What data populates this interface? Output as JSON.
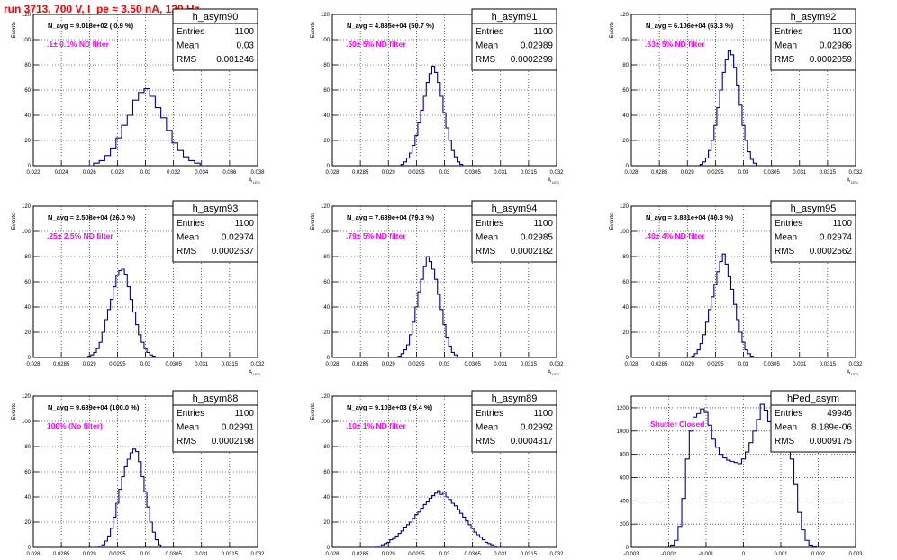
{
  "page_title": "run 3713,   700 V, I_pe ≈ 3.50 nA, 120 Hz",
  "colors": {
    "title": "#ff0000",
    "annotation": "#ff00ff",
    "histogram": "#000099",
    "grid": "#000000"
  },
  "stats_labels": {
    "entries": "Entries",
    "mean": "Mean",
    "rms": "RMS"
  },
  "chart_data": [
    {
      "type": "histogram",
      "title": "h_asym90",
      "ylabel": "Events",
      "xlabel": "A",
      "xlabel_sub": "LED",
      "xlim": [
        0.022,
        0.038
      ],
      "ylim": [
        0,
        120
      ],
      "xticks": [
        0.022,
        0.024,
        0.026,
        0.028,
        0.03,
        0.032,
        0.034,
        0.036,
        0.038
      ],
      "yticks": [
        0,
        20,
        40,
        60,
        80,
        100,
        120
      ],
      "navg": "N_avg = 9.018e+02 ( 0.9 %)",
      "filter_label": ".1± 0.1% ND filter",
      "stats": {
        "entries": "1100",
        "mean": "0.03",
        "rms": "0.001246"
      },
      "series": [
        {
          "x": [
            0.0261,
            0.0265,
            0.0269,
            0.0273,
            0.0277,
            0.0281,
            0.0285,
            0.0289,
            0.0293,
            0.0297,
            0.0301,
            0.0305,
            0.0309,
            0.0313,
            0.0317,
            0.0321,
            0.0325,
            0.0329,
            0.0333,
            0.0337,
            0.0341
          ],
          "values": [
            0,
            2,
            4,
            8,
            14,
            22,
            32,
            40,
            52,
            58,
            61,
            55,
            46,
            38,
            28,
            18,
            12,
            7,
            4,
            2,
            0
          ]
        }
      ]
    },
    {
      "type": "histogram",
      "title": "h_asym91",
      "ylabel": "Events",
      "xlabel": "A",
      "xlabel_sub": "LED",
      "xlim": [
        0.028,
        0.032
      ],
      "ylim": [
        0,
        120
      ],
      "xticks": [
        0.028,
        0.0285,
        0.029,
        0.0295,
        0.03,
        0.0305,
        0.031,
        0.0315,
        0.032
      ],
      "yticks": [
        0,
        20,
        40,
        60,
        80,
        100,
        120
      ],
      "navg": "N_avg = 4.885e+04 (50.7 %)",
      "filter_label": ".50± 5% ND filter",
      "stats": {
        "entries": "1100",
        "mean": "0.02989",
        "rms": "0.0002299"
      },
      "series": [
        {
          "x": [
            0.02925,
            0.0293,
            0.02935,
            0.0294,
            0.02945,
            0.0295,
            0.02955,
            0.0296,
            0.02965,
            0.0297,
            0.02975,
            0.0298,
            0.02985,
            0.0299,
            0.02995,
            0.03,
            0.03005,
            0.0301,
            0.03015,
            0.0302,
            0.03025,
            0.0303,
            0.03035
          ],
          "values": [
            1,
            3,
            6,
            10,
            16,
            24,
            34,
            44,
            55,
            66,
            73,
            79,
            74,
            66,
            55,
            42,
            30,
            20,
            12,
            7,
            3,
            1,
            0
          ]
        }
      ]
    },
    {
      "type": "histogram",
      "title": "h_asym92",
      "ylabel": "Events",
      "xlabel": "A",
      "xlabel_sub": "LED",
      "xlim": [
        0.028,
        0.032
      ],
      "ylim": [
        0,
        120
      ],
      "xticks": [
        0.028,
        0.0285,
        0.029,
        0.0295,
        0.03,
        0.0305,
        0.031,
        0.0315,
        0.032
      ],
      "yticks": [
        0,
        20,
        40,
        60,
        80,
        100,
        120
      ],
      "navg": "N_avg = 6.106e+04 (63.3 %)",
      "filter_label": ".63± 5% ND filter",
      "stats": {
        "entries": "1100",
        "mean": "0.02986",
        "rms": "0.0002059"
      },
      "series": [
        {
          "x": [
            0.02925,
            0.0293,
            0.02935,
            0.0294,
            0.02945,
            0.0295,
            0.02955,
            0.0296,
            0.02965,
            0.0297,
            0.02975,
            0.0298,
            0.02985,
            0.0299,
            0.02995,
            0.03,
            0.03005,
            0.0301,
            0.03015,
            0.0302,
            0.03025
          ],
          "values": [
            1,
            3,
            6,
            12,
            20,
            32,
            46,
            60,
            74,
            84,
            91,
            88,
            78,
            64,
            48,
            32,
            20,
            11,
            5,
            2,
            0
          ]
        }
      ]
    },
    {
      "type": "histogram",
      "title": "h_asym93",
      "ylabel": "Events",
      "xlabel": "A",
      "xlabel_sub": "LED",
      "xlim": [
        0.028,
        0.032
      ],
      "ylim": [
        0,
        120
      ],
      "xticks": [
        0.028,
        0.0285,
        0.029,
        0.0295,
        0.03,
        0.0305,
        0.031,
        0.0315,
        0.032
      ],
      "yticks": [
        0,
        20,
        40,
        60,
        80,
        100,
        120
      ],
      "navg": "N_avg = 2.508e+04 (26.0 %)",
      "filter_label": ".25± 2.5% ND filter",
      "stats": {
        "entries": "1100",
        "mean": "0.02974",
        "rms": "0.0002637"
      },
      "series": [
        {
          "x": [
            0.029,
            0.02905,
            0.0291,
            0.02915,
            0.0292,
            0.02925,
            0.0293,
            0.02935,
            0.0294,
            0.02945,
            0.0295,
            0.02955,
            0.0296,
            0.02965,
            0.0297,
            0.02975,
            0.0298,
            0.02985,
            0.0299,
            0.02995,
            0.03,
            0.03005,
            0.0301,
            0.03015,
            0.0302
          ],
          "values": [
            1,
            2,
            4,
            7,
            12,
            20,
            30,
            38,
            46,
            56,
            65,
            69,
            70,
            66,
            56,
            46,
            36,
            26,
            18,
            12,
            7,
            4,
            2,
            1,
            0
          ]
        }
      ]
    },
    {
      "type": "histogram",
      "title": "h_asym94",
      "ylabel": "Events",
      "xlabel": "A",
      "xlabel_sub": "LED",
      "xlim": [
        0.028,
        0.032
      ],
      "ylim": [
        0,
        120
      ],
      "xticks": [
        0.028,
        0.0285,
        0.029,
        0.0295,
        0.03,
        0.0305,
        0.031,
        0.0315,
        0.032
      ],
      "yticks": [
        0,
        20,
        40,
        60,
        80,
        100,
        120
      ],
      "navg": "N_avg = 7.639e+04 (79.3 %)",
      "filter_label": ".79± 5% ND filter",
      "stats": {
        "entries": "1100",
        "mean": "0.02985",
        "rms": "0.0002182"
      },
      "series": [
        {
          "x": [
            0.0292,
            0.02925,
            0.0293,
            0.02935,
            0.0294,
            0.02945,
            0.0295,
            0.02955,
            0.0296,
            0.02965,
            0.0297,
            0.02975,
            0.0298,
            0.02985,
            0.0299,
            0.02995,
            0.03,
            0.03005,
            0.0301,
            0.03015,
            0.0302,
            0.03025
          ],
          "values": [
            1,
            3,
            6,
            10,
            18,
            28,
            40,
            52,
            62,
            72,
            80,
            76,
            70,
            62,
            50,
            38,
            26,
            16,
            9,
            4,
            2,
            0
          ]
        }
      ]
    },
    {
      "type": "histogram",
      "title": "h_asym95",
      "ylabel": "Events",
      "xlabel": "A",
      "xlabel_sub": "LED",
      "xlim": [
        0.028,
        0.032
      ],
      "ylim": [
        0,
        120
      ],
      "xticks": [
        0.028,
        0.0285,
        0.029,
        0.0295,
        0.03,
        0.0305,
        0.031,
        0.0315,
        0.032
      ],
      "yticks": [
        0,
        20,
        40,
        60,
        80,
        100,
        120
      ],
      "navg": "N_avg = 3.881e+04 (40.3 %)",
      "filter_label": ".40± 4% ND filter",
      "stats": {
        "entries": "1100",
        "mean": "0.02974",
        "rms": "0.0002562"
      },
      "series": [
        {
          "x": [
            0.0291,
            0.02915,
            0.0292,
            0.02925,
            0.0293,
            0.02935,
            0.0294,
            0.02945,
            0.0295,
            0.02955,
            0.0296,
            0.02965,
            0.0297,
            0.02975,
            0.0298,
            0.02985,
            0.0299,
            0.02995,
            0.03,
            0.03005,
            0.0301,
            0.03015,
            0.0302
          ],
          "values": [
            1,
            3,
            6,
            11,
            18,
            28,
            38,
            48,
            58,
            68,
            76,
            82,
            74,
            64,
            54,
            42,
            30,
            20,
            12,
            6,
            3,
            1,
            0
          ]
        }
      ]
    },
    {
      "type": "histogram",
      "title": "h_asym88",
      "ylabel": "Events",
      "xlabel": "A",
      "xlabel_sub": "LED",
      "xlim": [
        0.028,
        0.032
      ],
      "ylim": [
        0,
        120
      ],
      "xticks": [
        0.028,
        0.0285,
        0.029,
        0.0295,
        0.03,
        0.0305,
        0.031,
        0.0315,
        0.032
      ],
      "yticks": [
        0,
        20,
        40,
        60,
        80,
        100,
        120
      ],
      "navg": "N_avg = 9.639e+04 (100.0 %)",
      "filter_label": "100% (No filter)",
      "stats": {
        "entries": "1100",
        "mean": "0.02991",
        "rms": "0.0002198"
      },
      "series": [
        {
          "x": [
            0.0292,
            0.02925,
            0.0293,
            0.02935,
            0.0294,
            0.02945,
            0.0295,
            0.02955,
            0.0296,
            0.02965,
            0.0297,
            0.02975,
            0.0298,
            0.02985,
            0.0299,
            0.02995,
            0.03,
            0.03005,
            0.0301,
            0.03015,
            0.0302,
            0.03025,
            0.0303
          ],
          "values": [
            1,
            2,
            5,
            9,
            15,
            24,
            35,
            46,
            56,
            64,
            70,
            75,
            78,
            76,
            68,
            56,
            44,
            32,
            20,
            12,
            6,
            2,
            0
          ]
        }
      ]
    },
    {
      "type": "histogram",
      "title": "h_asym89",
      "ylabel": "Events",
      "xlabel": "A",
      "xlabel_sub": "LED",
      "xlim": [
        0.028,
        0.032
      ],
      "ylim": [
        0,
        120
      ],
      "xticks": [
        0.028,
        0.0285,
        0.029,
        0.0295,
        0.03,
        0.0305,
        0.031,
        0.0315,
        0.032
      ],
      "yticks": [
        0,
        20,
        40,
        60,
        80,
        100,
        120
      ],
      "navg": "N_avg = 9.103e+03 ( 9.4 %)",
      "filter_label": ".10± 1% ND filter",
      "stats": {
        "entries": "1100",
        "mean": "0.02992",
        "rms": "0.0004317"
      },
      "series": [
        {
          "x": [
            0.0288,
            0.02885,
            0.0289,
            0.02895,
            0.029,
            0.02905,
            0.0291,
            0.02915,
            0.0292,
            0.02925,
            0.0293,
            0.02935,
            0.0294,
            0.02945,
            0.0295,
            0.02955,
            0.0296,
            0.02965,
            0.0297,
            0.02975,
            0.0298,
            0.02985,
            0.0299,
            0.02995,
            0.03,
            0.03005,
            0.0301,
            0.03015,
            0.0302,
            0.03025,
            0.0303,
            0.03035,
            0.0304,
            0.03045,
            0.0305,
            0.03055,
            0.0306,
            0.03065,
            0.0307,
            0.03075,
            0.0308,
            0.03085,
            0.0309
          ],
          "values": [
            1,
            1,
            2,
            3,
            4,
            6,
            7,
            9,
            11,
            13,
            16,
            18,
            20,
            23,
            26,
            28,
            31,
            34,
            36,
            39,
            41,
            43,
            45,
            42,
            44,
            40,
            38,
            35,
            33,
            30,
            27,
            24,
            21,
            18,
            15,
            12,
            10,
            8,
            6,
            4,
            3,
            2,
            1
          ]
        }
      ]
    },
    {
      "type": "histogram",
      "title": "hPed_asym",
      "ylabel": "",
      "xlabel": "",
      "xlabel_sub": "",
      "xlim": [
        -0.003,
        0.003
      ],
      "ylim": [
        0,
        1300
      ],
      "xticks": [
        -0.003,
        -0.002,
        -0.001,
        0,
        0.001,
        0.002,
        0.003
      ],
      "yticks": [
        0,
        200,
        400,
        600,
        800,
        1000,
        1200
      ],
      "navg": "",
      "filter_label": "Shutter Closed",
      "stats": {
        "entries": "49946",
        "mean": "8.189e-06",
        "rms": "0.0009175"
      },
      "series": [
        {
          "x": [
            -0.0019,
            -0.0018,
            -0.0017,
            -0.0016,
            -0.0015,
            -0.0014,
            -0.0013,
            -0.0012,
            -0.0011,
            -0.001,
            -0.0009,
            -0.0008,
            -0.0007,
            -0.0006,
            -0.0005,
            -0.0004,
            -0.0003,
            -0.0002,
            -0.0001,
            0,
            0.0001,
            0.0002,
            0.0003,
            0.0004,
            0.0005,
            0.0006,
            0.0007,
            0.0008,
            0.0009,
            0.001,
            0.0011,
            0.0012,
            0.0013,
            0.0014,
            0.0015,
            0.0016,
            0.0017,
            0.0018,
            0.0019,
            0.002
          ],
          "values": [
            20,
            60,
            180,
            420,
            760,
            1000,
            1120,
            1150,
            1190,
            1160,
            1050,
            930,
            860,
            800,
            770,
            750,
            740,
            730,
            720,
            760,
            820,
            900,
            1000,
            1100,
            1230,
            1180,
            1080,
            960,
            900,
            980,
            1080,
            1000,
            760,
            540,
            300,
            150,
            60,
            20,
            5,
            0
          ]
        }
      ]
    }
  ]
}
